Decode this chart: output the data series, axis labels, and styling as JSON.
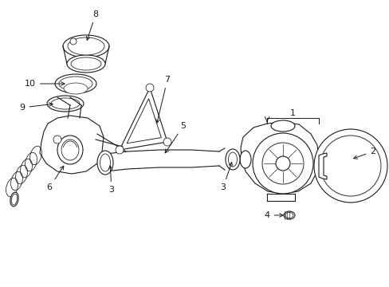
{
  "background_color": "#ffffff",
  "line_color": "#1a1a1a",
  "line_width": 0.8,
  "figsize": [
    4.89,
    3.6
  ],
  "dpi": 100
}
